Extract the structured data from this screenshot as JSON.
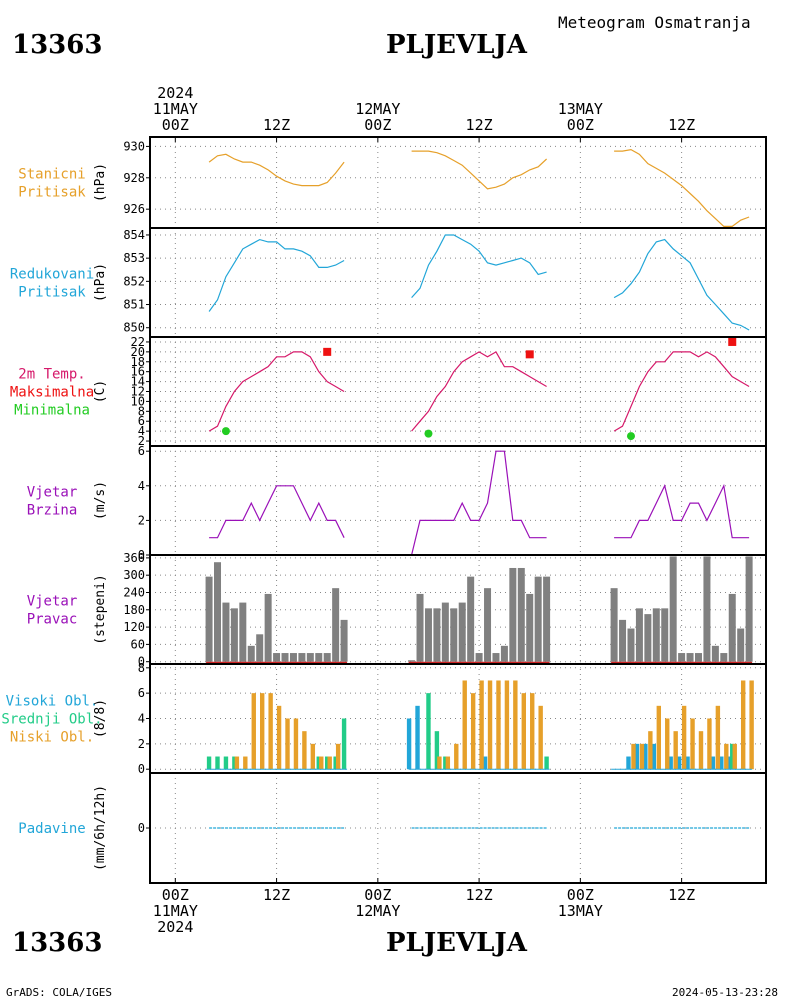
{
  "header": {
    "station_id": "13363",
    "station_name": "PLJEVLJA",
    "title": "Meteogram Osmatranja"
  },
  "footer": {
    "credit": "GrADS: COLA/IGES",
    "timestamp": "2024-05-13-23:28"
  },
  "colors": {
    "pressure": "#e6a02a",
    "reduced": "#22a6d8",
    "temp": "#d6196a",
    "tmax": "#ee1111",
    "tmin": "#22cc22",
    "wind": "#9a10b8",
    "dir": "#808080",
    "high_cloud": "#22a6d8",
    "mid_cloud": "#22cc88",
    "low_cloud": "#e6a02a",
    "precip": "#22a6d8"
  },
  "time_axis": {
    "top_labels": [
      {
        "hour": 0,
        "lines": [
          "2024",
          "11MAY",
          "00Z"
        ]
      },
      {
        "hour": 12,
        "lines": [
          "12Z"
        ]
      },
      {
        "hour": 24,
        "lines": [
          "12MAY",
          "00Z"
        ]
      },
      {
        "hour": 36,
        "lines": [
          "12Z"
        ]
      },
      {
        "hour": 48,
        "lines": [
          "13MAY",
          "00Z"
        ]
      },
      {
        "hour": 60,
        "lines": [
          "12Z"
        ]
      }
    ],
    "bottom_labels": [
      {
        "hour": 0,
        "lines": [
          "00Z",
          "11MAY",
          "2024"
        ]
      },
      {
        "hour": 12,
        "lines": [
          "12Z"
        ]
      },
      {
        "hour": 24,
        "lines": [
          "00Z",
          "12MAY"
        ]
      },
      {
        "hour": 36,
        "lines": [
          "12Z"
        ]
      },
      {
        "hour": 48,
        "lines": [
          "00Z",
          "13MAY"
        ]
      },
      {
        "hour": 60,
        "lines": [
          "12Z"
        ]
      }
    ],
    "x_range_hours": [
      -3,
      70
    ]
  },
  "chart_data": [
    {
      "type": "line",
      "panel": "station-pressure",
      "side_labels": [
        "Stanicni",
        "Pritisak"
      ],
      "ylabel": "(hPa)",
      "ylim": [
        924.8,
        930.6
      ],
      "yticks": [
        926,
        928,
        930
      ],
      "series": [
        {
          "x": [
            4,
            5,
            6,
            7,
            8,
            9,
            10,
            11,
            12,
            13,
            14,
            15,
            16,
            17,
            18,
            19,
            20
          ],
          "values": [
            929.0,
            929.4,
            929.5,
            929.2,
            929.0,
            929.0,
            928.8,
            928.5,
            928.1,
            927.8,
            927.6,
            927.5,
            927.5,
            927.5,
            927.7,
            928.3,
            929.0
          ]
        },
        {
          "x": [
            28,
            29,
            30,
            31,
            32,
            33,
            34,
            35,
            36,
            37,
            38,
            39,
            40,
            41,
            42,
            43,
            44
          ],
          "values": [
            929.7,
            929.7,
            929.7,
            929.6,
            929.4,
            929.1,
            928.8,
            928.3,
            927.8,
            927.3,
            927.4,
            927.6,
            928.0,
            928.2,
            928.5,
            928.7,
            929.2
          ]
        },
        {
          "x": [
            52,
            53,
            54,
            55,
            56,
            57,
            58,
            59,
            60,
            61,
            62,
            63,
            64,
            65,
            66,
            67,
            68
          ],
          "values": [
            929.7,
            929.7,
            929.8,
            929.5,
            928.9,
            928.6,
            928.3,
            927.9,
            927.5,
            927.0,
            926.5,
            925.9,
            925.4,
            924.9,
            924.9,
            925.3,
            925.5
          ]
        }
      ]
    },
    {
      "type": "line",
      "panel": "reduced-pressure",
      "side_labels": [
        "Redukovani",
        "Pritisak"
      ],
      "ylabel": "(hPa)",
      "ylim": [
        849.6,
        854.3
      ],
      "yticks": [
        850,
        851,
        852,
        853,
        854
      ],
      "series": [
        {
          "x": [
            4,
            5,
            6,
            7,
            8,
            9,
            10,
            11,
            12,
            13,
            14,
            15,
            16,
            17,
            18,
            19,
            20
          ],
          "values": [
            850.7,
            851.2,
            852.2,
            852.8,
            853.4,
            853.6,
            853.8,
            853.7,
            853.7,
            853.4,
            853.4,
            853.3,
            853.1,
            852.6,
            852.6,
            852.7,
            852.9
          ]
        },
        {
          "x": [
            28,
            29,
            30,
            31,
            32,
            33,
            34,
            35,
            36,
            37,
            38,
            39,
            40,
            41,
            42,
            43,
            44
          ],
          "values": [
            851.3,
            851.7,
            852.7,
            853.3,
            854.0,
            854.0,
            853.8,
            853.6,
            853.3,
            852.8,
            852.7,
            852.8,
            852.9,
            853.0,
            852.8,
            852.3,
            852.4
          ]
        },
        {
          "x": [
            52,
            53,
            54,
            55,
            56,
            57,
            58,
            59,
            60,
            61,
            62,
            63,
            64,
            65,
            66,
            67,
            68
          ],
          "values": [
            851.3,
            851.5,
            851.9,
            852.4,
            853.2,
            853.7,
            853.8,
            853.4,
            853.1,
            852.8,
            852.1,
            851.4,
            851.0,
            850.6,
            850.2,
            850.1,
            849.9
          ]
        }
      ]
    },
    {
      "type": "line",
      "panel": "temperature",
      "side_labels": [
        "2m Temp.",
        "Maksimalna",
        "Minimalna"
      ],
      "ylabel": "(C)",
      "ylim": [
        1,
        23
      ],
      "yticks": [
        2,
        4,
        6,
        8,
        10,
        12,
        14,
        16,
        18,
        20,
        22
      ],
      "series": [
        {
          "x": [
            4,
            5,
            6,
            7,
            8,
            9,
            10,
            11,
            12,
            13,
            14,
            15,
            16,
            17,
            18,
            19,
            20
          ],
          "values": [
            4,
            5,
            9,
            12,
            14,
            15,
            16,
            17,
            19,
            19,
            20,
            20,
            19,
            16,
            14,
            13,
            12
          ]
        },
        {
          "x": [
            28,
            29,
            30,
            31,
            32,
            33,
            34,
            35,
            36,
            37,
            38,
            39,
            40,
            41,
            42,
            43,
            44
          ],
          "values": [
            4,
            6,
            8,
            11,
            13,
            16,
            18,
            19,
            20,
            19,
            20,
            17,
            17,
            16,
            15,
            14,
            13
          ]
        },
        {
          "x": [
            52,
            53,
            54,
            55,
            56,
            57,
            58,
            59,
            60,
            61,
            62,
            63,
            64,
            65,
            66,
            67,
            68
          ],
          "values": [
            4,
            5,
            9,
            13,
            16,
            18,
            18,
            20,
            20,
            20,
            19,
            20,
            19,
            17,
            15,
            14,
            13
          ]
        }
      ],
      "maxima": [
        {
          "x": 18,
          "value": 20
        },
        {
          "x": 42,
          "value": 19.5
        },
        {
          "x": 66,
          "value": 22
        }
      ],
      "minima": [
        {
          "x": 6,
          "value": 4
        },
        {
          "x": 30,
          "value": 3.5
        },
        {
          "x": 54,
          "value": 3
        }
      ]
    },
    {
      "type": "line",
      "panel": "wind-speed",
      "side_labels": [
        "Vjetar",
        "Brzina"
      ],
      "ylabel": "(m/s)",
      "ylim": [
        0,
        6.3
      ],
      "yticks": [
        0,
        2,
        4,
        6
      ],
      "series": [
        {
          "x": [
            4,
            5,
            6,
            7,
            8,
            9,
            10,
            11,
            12,
            13,
            14,
            15,
            16,
            17,
            18,
            19,
            20
          ],
          "values": [
            1,
            1,
            2,
            2,
            2,
            3,
            2,
            3,
            4,
            4,
            4,
            3,
            2,
            3,
            2,
            2,
            1
          ]
        },
        {
          "x": [
            28,
            29,
            30,
            31,
            32,
            33,
            34,
            35,
            36,
            37,
            38,
            39,
            40,
            41,
            42,
            43,
            44
          ],
          "values": [
            0,
            2,
            2,
            2,
            2,
            2,
            3,
            2,
            2,
            3,
            6,
            6,
            2,
            2,
            1,
            1,
            1
          ]
        },
        {
          "x": [
            52,
            53,
            54,
            55,
            56,
            57,
            58,
            59,
            60,
            61,
            62,
            63,
            64,
            65,
            66,
            67,
            68
          ],
          "values": [
            1,
            1,
            1,
            2,
            2,
            3,
            4,
            2,
            2,
            3,
            3,
            2,
            3,
            4,
            1,
            1,
            1
          ]
        }
      ]
    },
    {
      "type": "bar",
      "panel": "wind-direction",
      "side_labels": [
        "Vjetar",
        "Pravac"
      ],
      "ylabel": "(stepeni)",
      "ylim": [
        -8,
        370
      ],
      "yticks": [
        0,
        60,
        120,
        180,
        240,
        300,
        360
      ],
      "series": [
        {
          "x": [
            4,
            5,
            6,
            7,
            8,
            9,
            10,
            11,
            12,
            13,
            14,
            15,
            16,
            17,
            18,
            19,
            20
          ],
          "values": [
            295,
            345,
            205,
            185,
            205,
            55,
            95,
            235,
            30,
            30,
            30,
            30,
            30,
            30,
            30,
            255,
            145
          ]
        },
        {
          "x": [
            28,
            29,
            30,
            31,
            32,
            33,
            34,
            35,
            36,
            37,
            38,
            39,
            40,
            41,
            42,
            43,
            44
          ],
          "values": [
            5,
            235,
            185,
            185,
            205,
            185,
            205,
            295,
            30,
            255,
            30,
            55,
            325,
            325,
            235,
            295,
            295
          ]
        },
        {
          "x": [
            52,
            53,
            54,
            55,
            56,
            57,
            58,
            59,
            60,
            61,
            62,
            63,
            64,
            65,
            66,
            67,
            68
          ],
          "values": [
            255,
            145,
            115,
            185,
            165,
            185,
            185,
            365,
            30,
            30,
            30,
            365,
            55,
            30,
            235,
            115,
            365
          ]
        }
      ]
    },
    {
      "type": "bar",
      "panel": "cloud-cover",
      "side_labels": [
        "Visoki Obl.",
        "Srednji Obl.",
        "Niski Obl."
      ],
      "ylabel": "(8/8)",
      "ylim": [
        -0.3,
        8.3
      ],
      "yticks": [
        0,
        2,
        4,
        6,
        8
      ],
      "series": [
        {
          "name": "Visoki Obl.",
          "x": [
            28,
            29,
            37,
            53,
            54,
            55,
            56,
            57,
            59,
            60,
            61,
            62,
            63,
            64,
            65,
            66,
            67,
            68
          ],
          "values": [
            4,
            5,
            1,
            0,
            1,
            2,
            2,
            2,
            1,
            1,
            1,
            0,
            0,
            1,
            1,
            1,
            0,
            0
          ]
        },
        {
          "name": "Srednji Obl.",
          "x": [
            4,
            5,
            6,
            7,
            17,
            18,
            19,
            20,
            28,
            29,
            30,
            31,
            32,
            44,
            54,
            55,
            56,
            57,
            59,
            60,
            61,
            62,
            63,
            64,
            65,
            66,
            67,
            68
          ],
          "values": [
            1,
            1,
            1,
            1,
            1,
            1,
            1,
            4,
            0,
            0,
            6,
            3,
            1,
            1,
            0,
            0,
            0,
            0,
            0,
            0,
            0,
            0,
            0,
            0,
            0,
            2,
            0,
            0
          ]
        },
        {
          "name": "Niski Obl.",
          "x": [
            7,
            8,
            9,
            10,
            11,
            12,
            13,
            14,
            15,
            16,
            17,
            18,
            19,
            20,
            31,
            32,
            33,
            34,
            35,
            36,
            37,
            38,
            39,
            40,
            41,
            42,
            43,
            44,
            54,
            55,
            56,
            57,
            58,
            59,
            60,
            61,
            62,
            63,
            64,
            65,
            66,
            67,
            68
          ],
          "values": [
            1,
            1,
            6,
            6,
            6,
            5,
            4,
            4,
            3,
            2,
            1,
            1,
            2,
            0,
            1,
            1,
            2,
            7,
            6,
            7,
            7,
            7,
            7,
            7,
            6,
            6,
            5,
            0,
            2,
            2,
            3,
            5,
            4,
            3,
            5,
            4,
            3,
            4,
            5,
            2,
            2,
            7,
            7
          ]
        }
      ]
    },
    {
      "type": "line",
      "panel": "precipitation",
      "side_labels": [
        "Padavine"
      ],
      "ylabel": "(mm/6h/12h)",
      "ylim": [
        -5,
        5
      ],
      "yticks": [
        0
      ],
      "series": [
        {
          "x": [
            4,
            20
          ],
          "values": [
            0,
            0
          ]
        },
        {
          "x": [
            28,
            44
          ],
          "values": [
            0,
            0
          ]
        },
        {
          "x": [
            52,
            68
          ],
          "values": [
            0,
            0
          ]
        }
      ]
    }
  ]
}
